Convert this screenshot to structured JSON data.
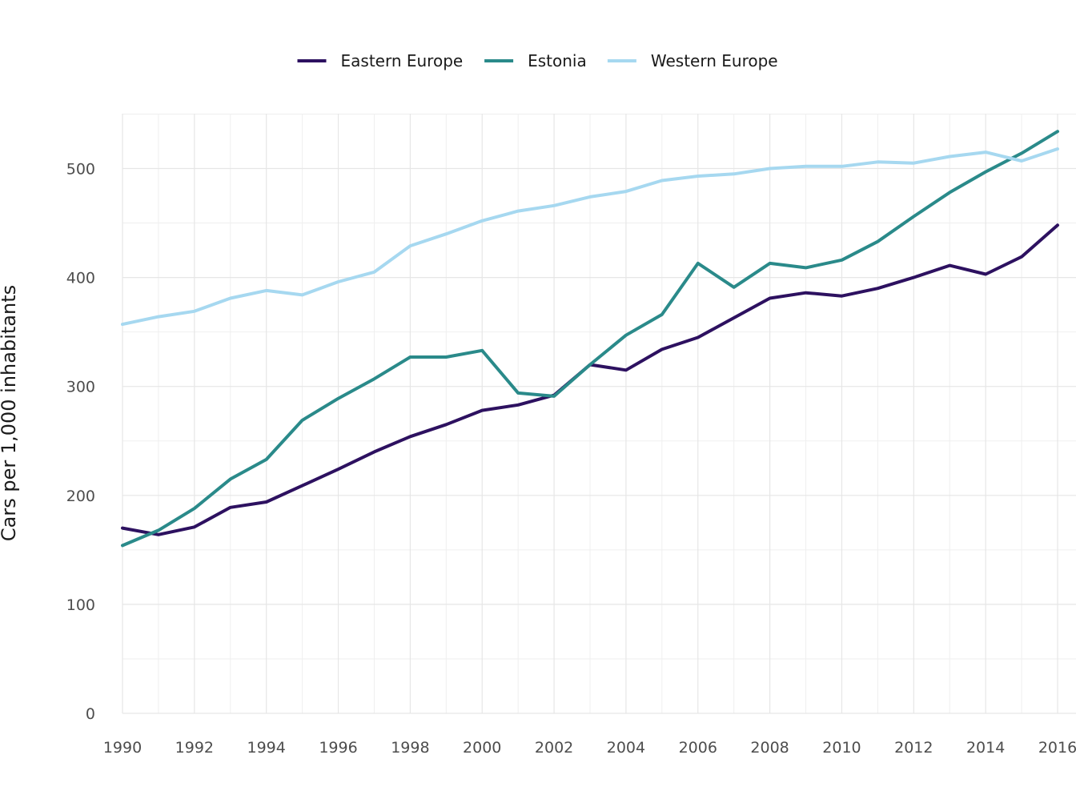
{
  "chart_data": {
    "type": "line",
    "title": "",
    "xlabel": "",
    "ylabel": "Cars per 1,000 inhabitants",
    "xlim": [
      1990,
      2016
    ],
    "ylim": [
      0,
      550
    ],
    "x_ticks": [
      1990,
      1992,
      1994,
      1996,
      1998,
      2000,
      2002,
      2004,
      2006,
      2008,
      2010,
      2012,
      2014,
      2016
    ],
    "y_ticks": [
      0,
      100,
      200,
      300,
      400,
      500
    ],
    "grid": true,
    "legend_position": "top",
    "x": [
      1990,
      1991,
      1992,
      1993,
      1994,
      1995,
      1996,
      1997,
      1998,
      1999,
      2000,
      2001,
      2002,
      2003,
      2004,
      2005,
      2006,
      2007,
      2008,
      2009,
      2010,
      2011,
      2012,
      2013,
      2014,
      2015,
      2016
    ],
    "series": [
      {
        "name": "Eastern Europe",
        "color": "#2d1160",
        "values": [
          170,
          164,
          171,
          189,
          194,
          209,
          224,
          240,
          254,
          265,
          278,
          283,
          292,
          320,
          315,
          334,
          345,
          363,
          381,
          386,
          383,
          390,
          400,
          411,
          403,
          419,
          448
        ]
      },
      {
        "name": "Estonia",
        "color": "#2a8a8a",
        "values": [
          154,
          168,
          188,
          215,
          233,
          269,
          289,
          307,
          327,
          327,
          333,
          294,
          291,
          320,
          347,
          366,
          413,
          391,
          413,
          409,
          416,
          433,
          456,
          478,
          497,
          514,
          534
        ]
      },
      {
        "name": "Western Europe",
        "color": "#a6d8f0",
        "values": [
          357,
          364,
          369,
          381,
          388,
          384,
          396,
          405,
          429,
          440,
          452,
          461,
          466,
          474,
          479,
          489,
          493,
          495,
          500,
          502,
          502,
          506,
          505,
          511,
          515,
          507,
          518
        ]
      }
    ]
  }
}
